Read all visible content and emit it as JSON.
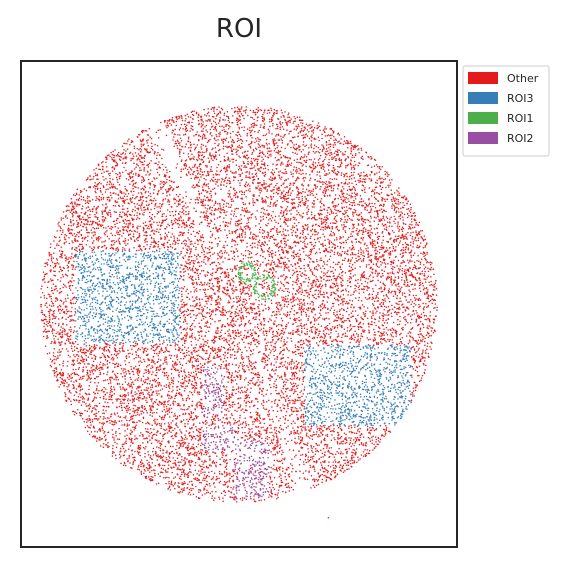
{
  "chart_data": {
    "type": "scatter",
    "title": "ROI",
    "xlabel": "",
    "ylabel": "",
    "grid": false,
    "axis_ticks": false,
    "legend_placement": "outside-top-right",
    "series": [
      {
        "name": "Other",
        "color": "#e41a1c",
        "regions": [
          {
            "shape": "disk",
            "center": [
              0.5,
              0.5
            ],
            "radius": 0.455,
            "density": "high"
          },
          {
            "shape": "point",
            "center": [
              0.705,
              0.06
            ]
          }
        ],
        "notes_excluded": "points inside the ROI1, ROI2 and ROI3 regions belong to those series"
      },
      {
        "name": "ROI3",
        "color": "#377eb8",
        "regions": [
          {
            "shape": "rect",
            "x_range": [
              0.125,
              0.365
            ],
            "y_range": [
              0.42,
              0.61
            ]
          },
          {
            "shape": "rect",
            "x_range": [
              0.65,
              0.895
            ],
            "y_range": [
              0.25,
              0.415
            ]
          }
        ]
      },
      {
        "name": "ROI1",
        "color": "#4daf4a",
        "regions": [
          {
            "shape": "ring",
            "center": [
              0.518,
              0.565
            ],
            "radius": 0.018
          },
          {
            "shape": "ring",
            "center": [
              0.558,
              0.535
            ],
            "radius": 0.022
          }
        ]
      },
      {
        "name": "ROI2",
        "color": "#984ea3",
        "regions": [
          {
            "shape": "band",
            "x_range": [
              0.415,
              0.465
            ],
            "y_range": [
              0.27,
              0.37
            ]
          },
          {
            "shape": "band",
            "x_range": [
              0.42,
              0.49
            ],
            "y_range": [
              0.2,
              0.25
            ]
          },
          {
            "shape": "band",
            "x_range": [
              0.49,
              0.57
            ],
            "y_range": [
              0.1,
              0.22
            ]
          }
        ]
      }
    ],
    "xlim": [
      0,
      1
    ],
    "ylim": [
      0,
      1
    ]
  }
}
